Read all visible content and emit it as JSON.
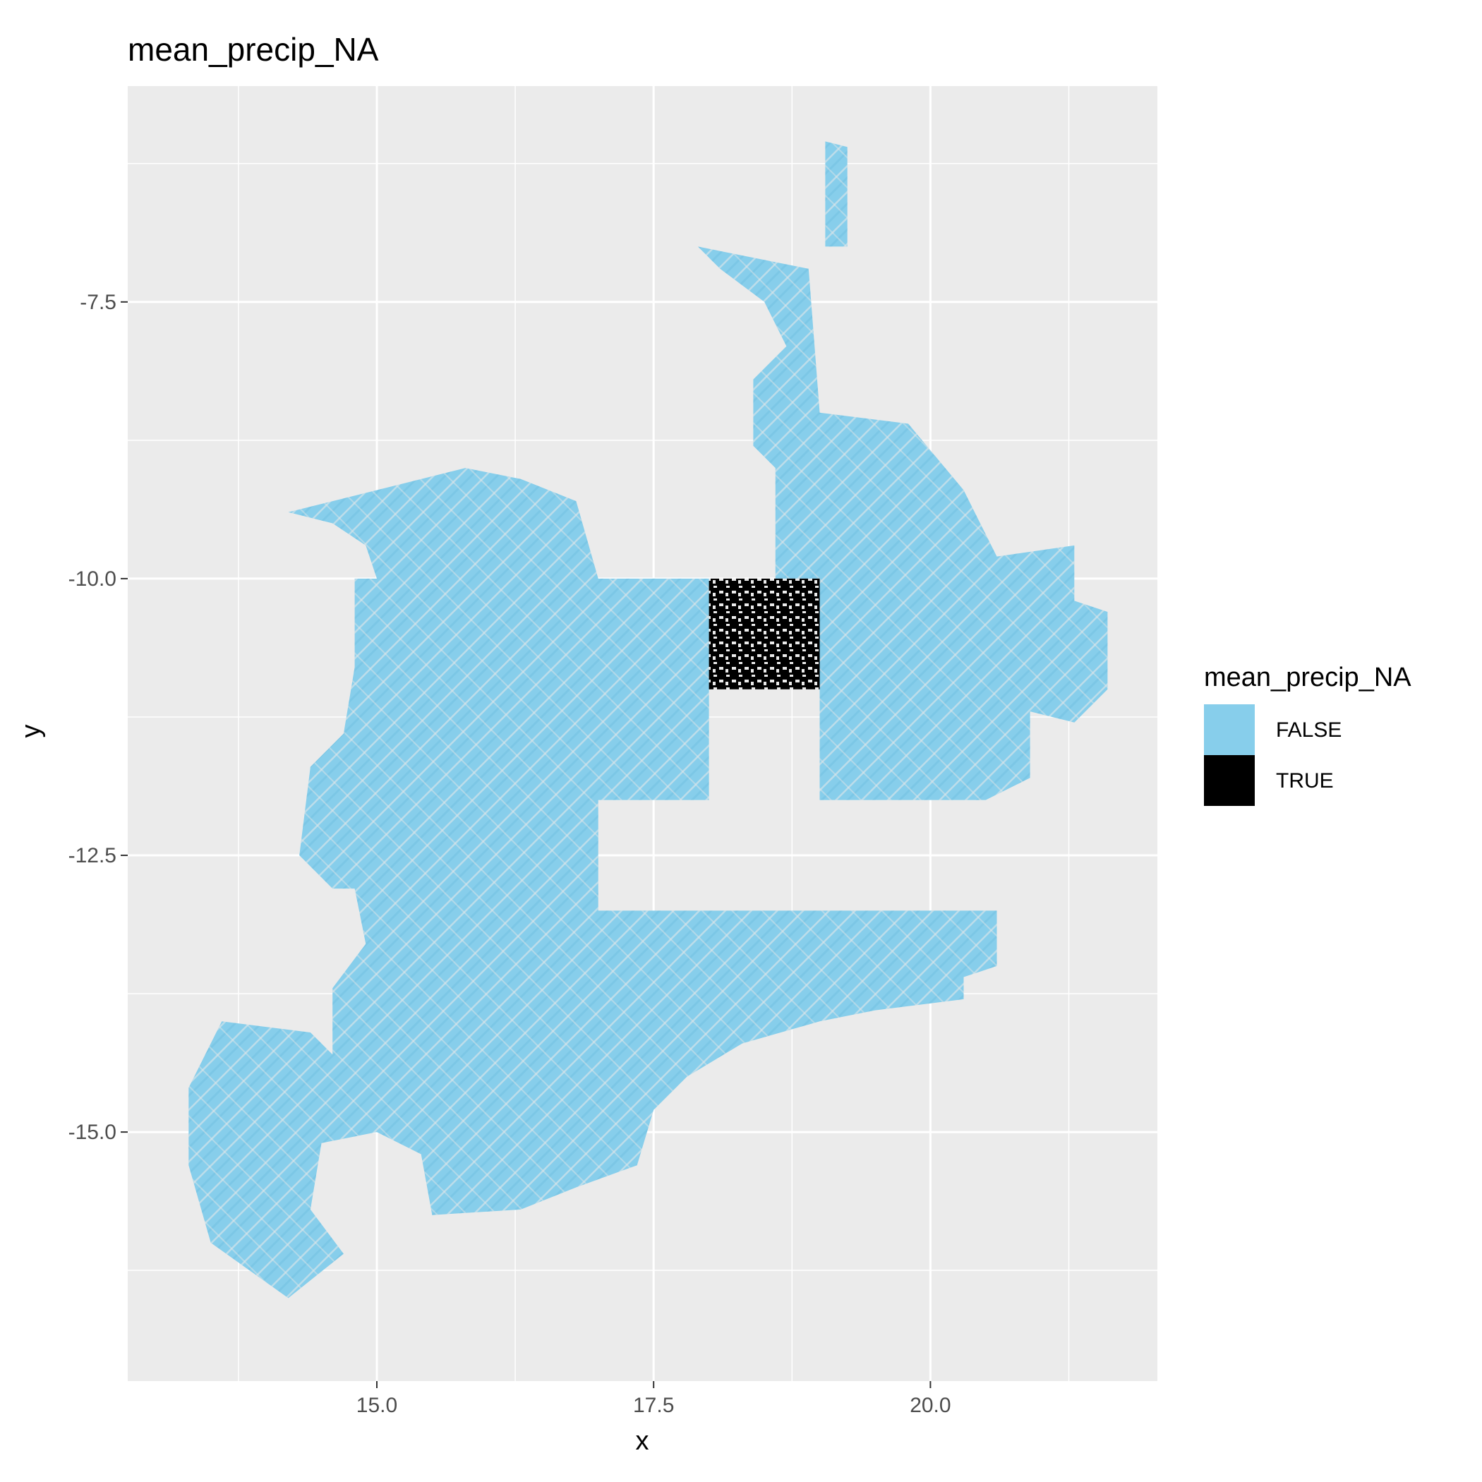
{
  "chart_data": {
    "type": "raster",
    "title": "mean_precip_NA",
    "xlabel": "x",
    "ylabel": "y",
    "xlim": [
      12.75,
      22.05
    ],
    "ylim": [
      -17.25,
      -5.55
    ],
    "x_ticks": [
      15.0,
      17.5,
      20.0
    ],
    "x_tick_labels": [
      "15.0",
      "17.5",
      "20.0"
    ],
    "y_ticks": [
      -7.5,
      -10.0,
      -12.5,
      -15.0
    ],
    "y_tick_labels": [
      "-7.5",
      "-10.0",
      "-12.5",
      "-15.0"
    ],
    "grid": true,
    "legend": {
      "title": "mean_precip_NA",
      "position": "right",
      "entries": [
        {
          "label": "FALSE",
          "color": "#87CEEB"
        },
        {
          "label": "TRUE",
          "color": "#000000"
        }
      ]
    },
    "regions": [
      {
        "value": "FALSE",
        "color": "#87CEEB",
        "outline": [
          [
            19.05,
            -6.05
          ],
          [
            19.25,
            -6.1
          ],
          [
            19.25,
            -7.0
          ],
          [
            19.05,
            -7.0
          ]
        ]
      },
      {
        "value": "FALSE",
        "color": "#87CEEB",
        "outline": [
          [
            17.9,
            -7.0
          ],
          [
            18.9,
            -7.2
          ],
          [
            19.0,
            -8.5
          ],
          [
            19.8,
            -8.6
          ],
          [
            20.3,
            -9.2
          ],
          [
            20.6,
            -9.8
          ],
          [
            21.3,
            -9.7
          ],
          [
            21.3,
            -10.2
          ],
          [
            21.6,
            -10.3
          ],
          [
            21.6,
            -11.0
          ],
          [
            21.3,
            -11.3
          ],
          [
            20.9,
            -11.2
          ],
          [
            20.9,
            -11.8
          ],
          [
            20.5,
            -12.0
          ],
          [
            19.0,
            -12.0
          ],
          [
            19.0,
            -10.0
          ],
          [
            18.6,
            -10.0
          ],
          [
            18.6,
            -9.0
          ],
          [
            18.4,
            -8.8
          ],
          [
            18.4,
            -8.2
          ],
          [
            18.7,
            -7.9
          ],
          [
            18.5,
            -7.5
          ],
          [
            18.1,
            -7.2
          ]
        ]
      },
      {
        "value": "FALSE",
        "color": "#87CEEB",
        "outline": [
          [
            14.2,
            -9.4
          ],
          [
            15.0,
            -9.2
          ],
          [
            15.8,
            -9.0
          ],
          [
            16.3,
            -9.1
          ],
          [
            16.8,
            -9.3
          ],
          [
            17.0,
            -10.0
          ],
          [
            18.0,
            -10.0
          ],
          [
            18.0,
            -12.0
          ],
          [
            17.0,
            -12.0
          ],
          [
            17.0,
            -13.0
          ],
          [
            20.6,
            -13.0
          ],
          [
            20.6,
            -13.5
          ],
          [
            20.3,
            -13.6
          ],
          [
            20.3,
            -13.8
          ],
          [
            19.5,
            -13.9
          ],
          [
            19.0,
            -14.0
          ],
          [
            18.3,
            -14.2
          ],
          [
            17.8,
            -14.5
          ],
          [
            17.5,
            -14.8
          ],
          [
            17.35,
            -15.3
          ],
          [
            16.8,
            -15.5
          ],
          [
            16.3,
            -15.7
          ],
          [
            15.5,
            -15.75
          ],
          [
            15.4,
            -15.2
          ],
          [
            15.0,
            -15.0
          ],
          [
            14.5,
            -15.1
          ],
          [
            14.4,
            -15.7
          ],
          [
            14.7,
            -16.1
          ],
          [
            14.2,
            -16.5
          ],
          [
            13.5,
            -16.0
          ],
          [
            13.3,
            -15.3
          ],
          [
            13.3,
            -14.6
          ],
          [
            13.6,
            -14.0
          ],
          [
            14.4,
            -14.1
          ],
          [
            14.6,
            -14.3
          ],
          [
            14.6,
            -13.7
          ],
          [
            14.9,
            -13.3
          ],
          [
            14.8,
            -12.8
          ],
          [
            14.6,
            -12.8
          ],
          [
            14.3,
            -12.5
          ],
          [
            14.4,
            -11.7
          ],
          [
            14.7,
            -11.4
          ],
          [
            14.8,
            -10.8
          ],
          [
            14.8,
            -10.0
          ],
          [
            15.0,
            -10.0
          ],
          [
            14.9,
            -9.7
          ],
          [
            14.6,
            -9.5
          ]
        ]
      },
      {
        "value": "TRUE",
        "color": "#000000",
        "outline": [
          [
            18.0,
            -10.0
          ],
          [
            19.0,
            -10.0
          ],
          [
            19.0,
            -11.0
          ],
          [
            18.0,
            -11.0
          ]
        ]
      }
    ]
  }
}
